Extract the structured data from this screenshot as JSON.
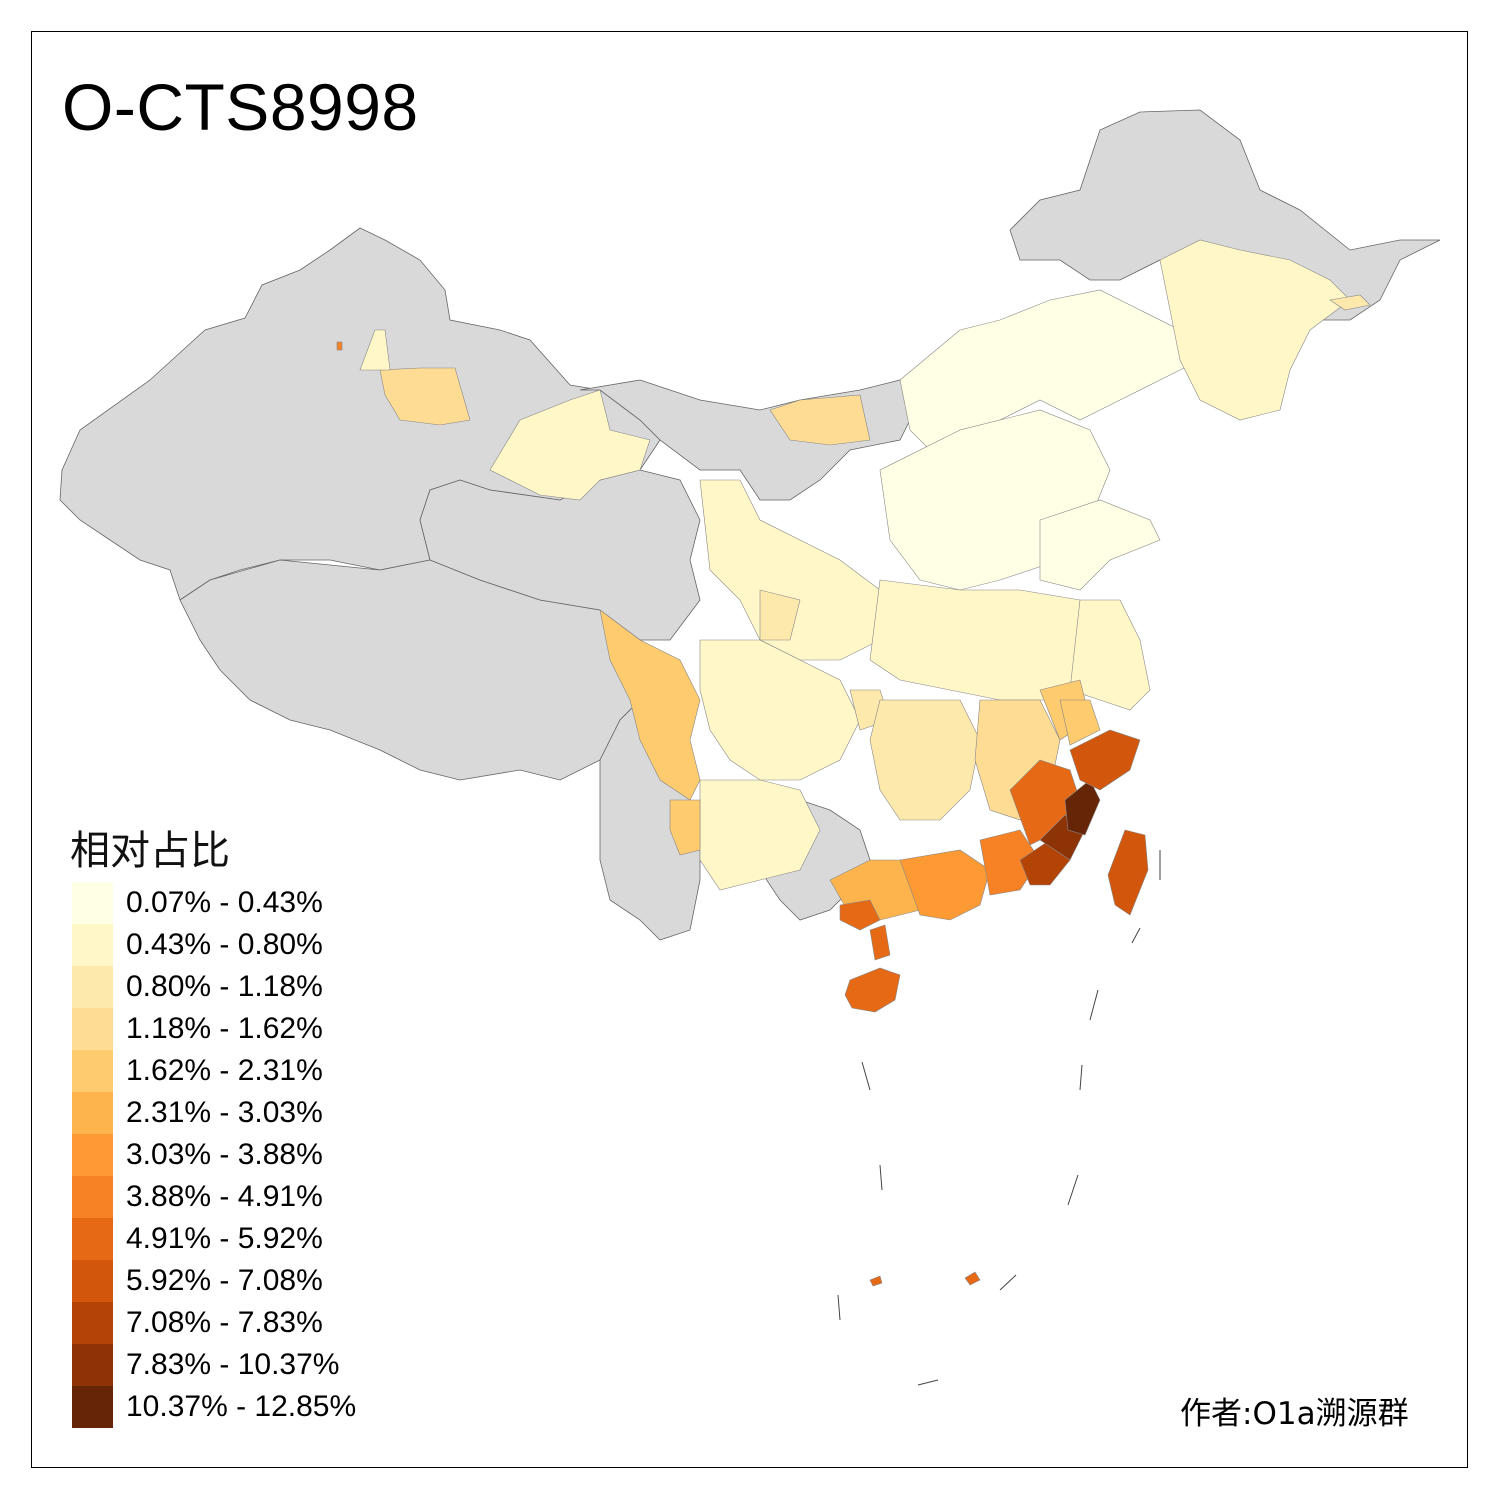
{
  "title": "O-CTS8998",
  "credit": "作者:O1a溯源群",
  "legend": {
    "title": "相对占比",
    "items": [
      {
        "label": "0.07% - 0.43%",
        "color": "#ffffe5"
      },
      {
        "label": "0.43% - 0.80%",
        "color": "#fff7c8"
      },
      {
        "label": "0.80% - 1.18%",
        "color": "#fee9ad"
      },
      {
        "label": "1.18% - 1.62%",
        "color": "#fedc93"
      },
      {
        "label": "1.62% - 2.31%",
        "color": "#fecb6e"
      },
      {
        "label": "2.31% - 3.03%",
        "color": "#feb44c"
      },
      {
        "label": "3.03% - 3.88%",
        "color": "#fd9a33"
      },
      {
        "label": "3.88% - 4.91%",
        "color": "#f68225"
      },
      {
        "label": "4.91% - 5.92%",
        "color": "#e66a16"
      },
      {
        "label": "5.92% - 7.08%",
        "color": "#d2560b"
      },
      {
        "label": "7.08% - 7.83%",
        "color": "#b44406"
      },
      {
        "label": "7.83% - 10.37%",
        "color": "#8e3305"
      },
      {
        "label": "10.37% - 12.85%",
        "color": "#662506"
      }
    ]
  },
  "map": {
    "no_data_color": "#d9d9d9",
    "border_color": "#555555"
  }
}
